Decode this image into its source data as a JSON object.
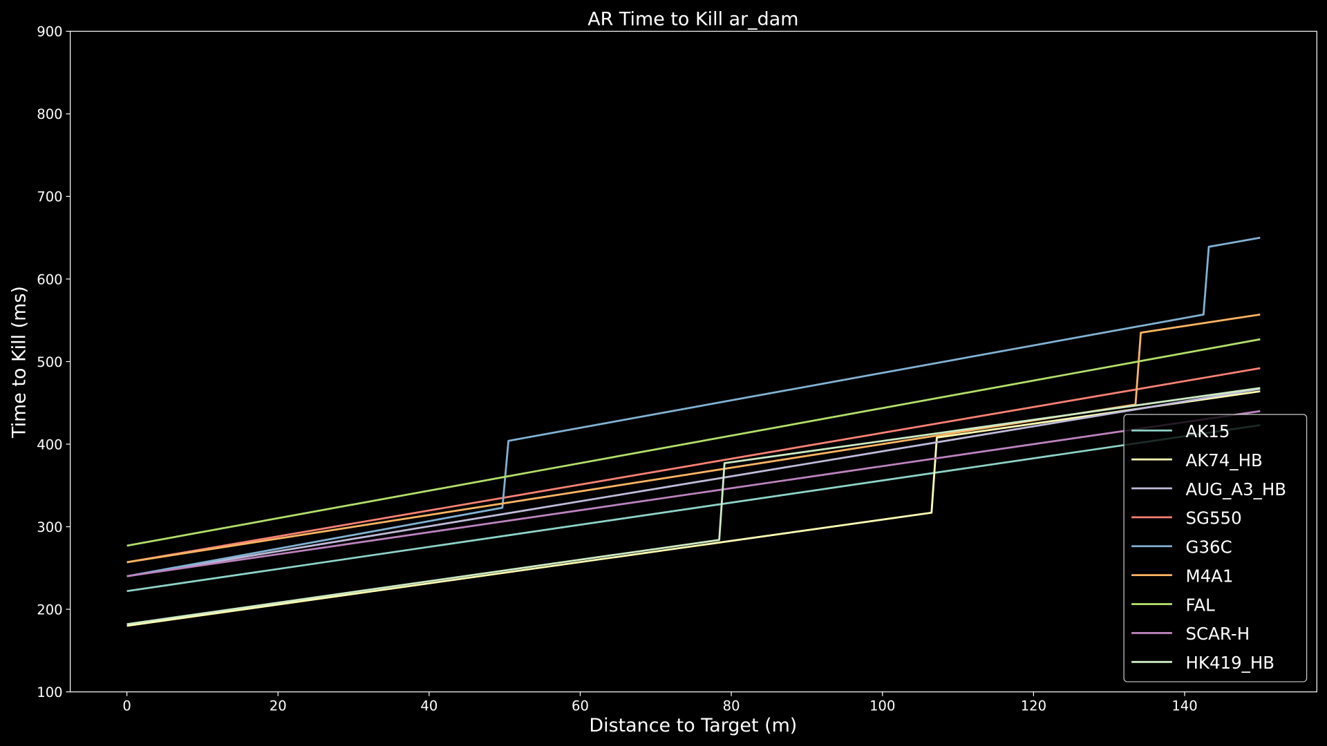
{
  "chart_data": {
    "type": "line",
    "title": "AR Time to Kill ar_dam",
    "xlabel": "Distance to Target (m)",
    "ylabel": "Time to Kill (ms)",
    "xlim": [
      -7.5,
      157.5
    ],
    "ylim": [
      100,
      900
    ],
    "xticks": [
      0,
      20,
      40,
      60,
      80,
      100,
      120,
      140
    ],
    "yticks": [
      100,
      200,
      300,
      400,
      500,
      600,
      700,
      800,
      900
    ],
    "grid": false,
    "legend_position": "lower-right",
    "series": [
      {
        "name": "AK15",
        "color": "#8dd3c7",
        "points": [
          [
            0,
            222
          ],
          [
            150,
            423
          ]
        ]
      },
      {
        "name": "AK74_HB",
        "color": "#feffb3",
        "points": [
          [
            0,
            180
          ],
          [
            106.5,
            317
          ],
          [
            107.2,
            408
          ],
          [
            150,
            464
          ]
        ]
      },
      {
        "name": "AUG_A3_HB",
        "color": "#bfbbd9",
        "points": [
          [
            0,
            240
          ],
          [
            150,
            467
          ]
        ]
      },
      {
        "name": "SG550",
        "color": "#fa8174",
        "points": [
          [
            0,
            257
          ],
          [
            150,
            492
          ]
        ]
      },
      {
        "name": "G36C",
        "color": "#81b1d2",
        "points": [
          [
            0,
            240
          ],
          [
            49.7,
            323
          ],
          [
            50.5,
            404
          ],
          [
            142.5,
            557
          ],
          [
            143.2,
            639
          ],
          [
            150,
            650
          ]
        ]
      },
      {
        "name": "M4A1",
        "color": "#fdb462",
        "points": [
          [
            0,
            257
          ],
          [
            133.5,
            448
          ],
          [
            134.2,
            535
          ],
          [
            150,
            557
          ]
        ]
      },
      {
        "name": "FAL",
        "color": "#b3de69",
        "points": [
          [
            0,
            277
          ],
          [
            150,
            527
          ]
        ]
      },
      {
        "name": "SCAR-H",
        "color": "#bc82bd",
        "points": [
          [
            0,
            240
          ],
          [
            150,
            440
          ]
        ]
      },
      {
        "name": "HK419_HB",
        "color": "#ccebc4",
        "points": [
          [
            0,
            182
          ],
          [
            78.4,
            284
          ],
          [
            79.1,
            377
          ],
          [
            150,
            468
          ]
        ]
      }
    ]
  }
}
